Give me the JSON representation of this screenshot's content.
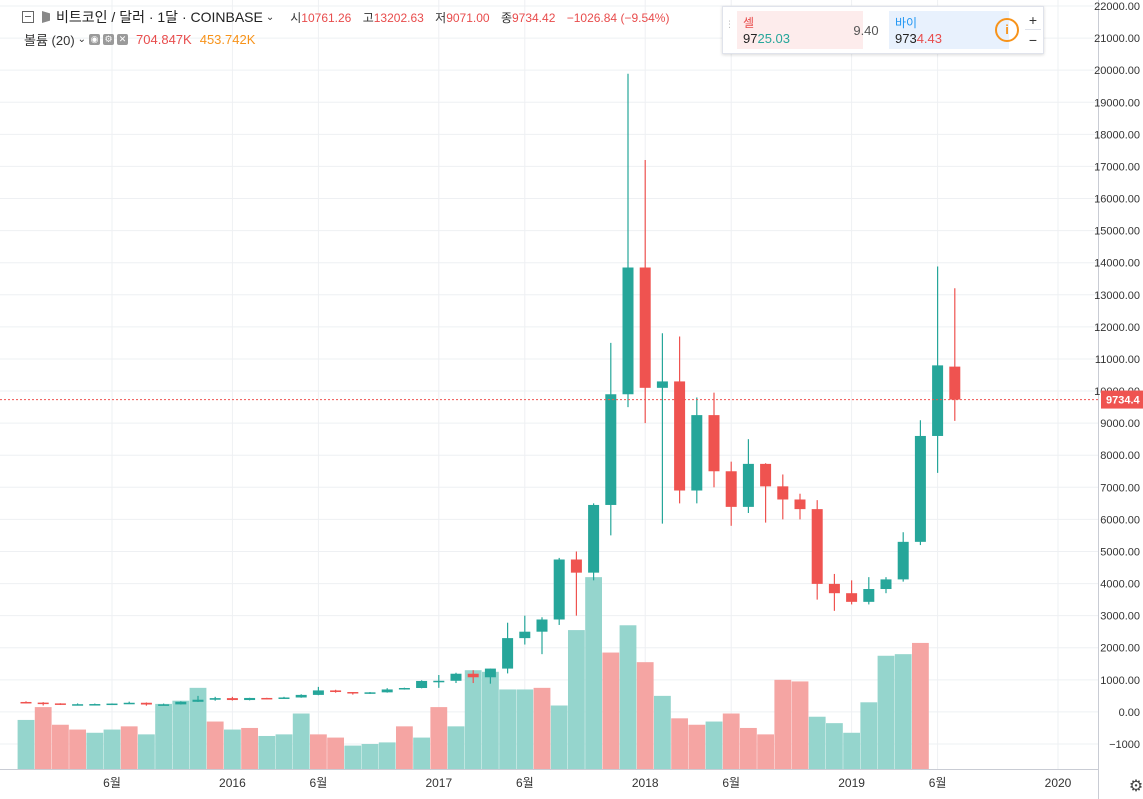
{
  "legend": {
    "symbol": "비트코인 / 달러 · 1달 · COINBASE",
    "ohlc": [
      {
        "label": "시",
        "value": "10761.26"
      },
      {
        "label": "고",
        "value": "13202.63"
      },
      {
        "label": "저",
        "value": "9071.00"
      },
      {
        "label": "종",
        "value": "9734.42"
      },
      {
        "label": "",
        "value": "−1026.84 (−9.54%)"
      }
    ],
    "volume_title": "볼륨 (20)",
    "volume_value": "704.847K",
    "volume_ma": "453.742K"
  },
  "trade_panel": {
    "sell_label": "셀",
    "sell_price_main": "97",
    "sell_price_hl": "25.03",
    "spread": "9.40",
    "buy_label": "바이",
    "buy_price_main": "973",
    "buy_price_hl": "4.43",
    "info_icon": "i",
    "zoom_in": "+",
    "zoom_out": "−"
  },
  "colors": {
    "up": "#26a69a",
    "down": "#ef5350",
    "up_volume": "#95d5cd",
    "down_volume": "#f5a5a3",
    "last_price": "#ef5350"
  },
  "chart_data": {
    "type": "candlestick",
    "y_axis": {
      "ticks": [
        -1000,
        0,
        1000,
        2000,
        3000,
        4000,
        5000,
        6000,
        7000,
        8000,
        9000,
        10000,
        11000,
        12000,
        13000,
        14000,
        15000,
        16000,
        17000,
        18000,
        19000,
        20000,
        21000,
        22000
      ],
      "tick_labels": [
        "−1000",
        "0.00",
        "1000.00",
        "2000.00",
        "3000.00",
        "4000.00",
        "5000.00",
        "6000.00",
        "7000.00",
        "8000.00",
        "9000.00",
        "10000.00",
        "11000.00",
        "12000.00",
        "13000.00",
        "14000.00",
        "15000.00",
        "16000.00",
        "17000.00",
        "18000.00",
        "19000.00",
        "20000.00",
        "21000.00",
        "22000.00"
      ],
      "range": [
        -1500,
        22200
      ]
    },
    "x_axis": {
      "labels": [
        {
          "text": "6월",
          "month": 5
        },
        {
          "text": "2016",
          "month": 12
        },
        {
          "text": "6월",
          "month": 17
        },
        {
          "text": "2017",
          "month": 24
        },
        {
          "text": "6월",
          "month": 29
        },
        {
          "text": "2018",
          "month": 36
        },
        {
          "text": "6월",
          "month": 41
        },
        {
          "text": "2019",
          "month": 48
        },
        {
          "text": "6월",
          "month": 53
        },
        {
          "text": "2020",
          "month": 60
        }
      ],
      "first_month": 0,
      "last_month": 66
    },
    "last_price": 9734.42,
    "last_price_label": "9734.4",
    "candles": [
      {
        "m": 0,
        "o": 310,
        "h": 330,
        "l": 265,
        "c": 290
      },
      {
        "m": 1,
        "o": 290,
        "h": 305,
        "l": 200,
        "c": 265
      },
      {
        "m": 2,
        "o": 265,
        "h": 270,
        "l": 215,
        "c": 230
      },
      {
        "m": 3,
        "o": 230,
        "h": 265,
        "l": 220,
        "c": 240
      },
      {
        "m": 4,
        "o": 240,
        "h": 260,
        "l": 230,
        "c": 245
      },
      {
        "m": 5,
        "o": 245,
        "h": 265,
        "l": 215,
        "c": 260
      },
      {
        "m": 6,
        "o": 260,
        "h": 320,
        "l": 255,
        "c": 285
      },
      {
        "m": 7,
        "o": 285,
        "h": 295,
        "l": 195,
        "c": 230
      },
      {
        "m": 8,
        "o": 230,
        "h": 260,
        "l": 210,
        "c": 235
      },
      {
        "m": 9,
        "o": 235,
        "h": 330,
        "l": 230,
        "c": 315
      },
      {
        "m": 10,
        "o": 315,
        "h": 500,
        "l": 310,
        "c": 380
      },
      {
        "m": 11,
        "o": 380,
        "h": 470,
        "l": 350,
        "c": 430
      },
      {
        "m": 12,
        "o": 430,
        "h": 470,
        "l": 355,
        "c": 370
      },
      {
        "m": 13,
        "o": 370,
        "h": 440,
        "l": 360,
        "c": 435
      },
      {
        "m": 14,
        "o": 435,
        "h": 440,
        "l": 395,
        "c": 415
      },
      {
        "m": 15,
        "o": 415,
        "h": 470,
        "l": 410,
        "c": 450
      },
      {
        "m": 16,
        "o": 450,
        "h": 550,
        "l": 440,
        "c": 530
      },
      {
        "m": 17,
        "o": 530,
        "h": 780,
        "l": 520,
        "c": 670
      },
      {
        "m": 18,
        "o": 670,
        "h": 690,
        "l": 600,
        "c": 620
      },
      {
        "m": 19,
        "o": 620,
        "h": 620,
        "l": 540,
        "c": 575
      },
      {
        "m": 20,
        "o": 575,
        "h": 620,
        "l": 560,
        "c": 610
      },
      {
        "m": 21,
        "o": 610,
        "h": 740,
        "l": 600,
        "c": 700
      },
      {
        "m": 22,
        "o": 700,
        "h": 755,
        "l": 695,
        "c": 745
      },
      {
        "m": 23,
        "o": 745,
        "h": 985,
        "l": 735,
        "c": 965
      },
      {
        "m": 24,
        "o": 965,
        "h": 1150,
        "l": 750,
        "c": 970
      },
      {
        "m": 25,
        "o": 970,
        "h": 1220,
        "l": 900,
        "c": 1190
      },
      {
        "m": 26,
        "o": 1190,
        "h": 1300,
        "l": 900,
        "c": 1080
      },
      {
        "m": 27,
        "o": 1080,
        "h": 1350,
        "l": 880,
        "c": 1350
      },
      {
        "m": 28,
        "o": 1350,
        "h": 2780,
        "l": 1200,
        "c": 2300
      },
      {
        "m": 29,
        "o": 2300,
        "h": 3000,
        "l": 2100,
        "c": 2500
      },
      {
        "m": 30,
        "o": 2500,
        "h": 2950,
        "l": 1800,
        "c": 2880
      },
      {
        "m": 31,
        "o": 2880,
        "h": 4800,
        "l": 2710,
        "c": 4750
      },
      {
        "m": 32,
        "o": 4750,
        "h": 5000,
        "l": 3000,
        "c": 4340
      },
      {
        "m": 33,
        "o": 4340,
        "h": 6500,
        "l": 4100,
        "c": 6450
      },
      {
        "m": 34,
        "o": 6450,
        "h": 11500,
        "l": 5500,
        "c": 9900
      },
      {
        "m": 35,
        "o": 9900,
        "h": 19890,
        "l": 9500,
        "c": 13850
      },
      {
        "m": 36,
        "o": 13850,
        "h": 17200,
        "l": 9000,
        "c": 10100
      },
      {
        "m": 37,
        "o": 10100,
        "h": 11800,
        "l": 5870,
        "c": 10300
      },
      {
        "m": 38,
        "o": 10300,
        "h": 11700,
        "l": 6500,
        "c": 6900
      },
      {
        "m": 39,
        "o": 6900,
        "h": 9800,
        "l": 6500,
        "c": 9250
      },
      {
        "m": 40,
        "o": 9250,
        "h": 9950,
        "l": 7000,
        "c": 7500
      },
      {
        "m": 41,
        "o": 7500,
        "h": 7800,
        "l": 5800,
        "c": 6390
      },
      {
        "m": 42,
        "o": 6390,
        "h": 8500,
        "l": 6200,
        "c": 7730
      },
      {
        "m": 43,
        "o": 7730,
        "h": 7750,
        "l": 5900,
        "c": 7030
      },
      {
        "m": 44,
        "o": 7030,
        "h": 7400,
        "l": 6000,
        "c": 6620
      },
      {
        "m": 45,
        "o": 6620,
        "h": 6800,
        "l": 6000,
        "c": 6320
      },
      {
        "m": 46,
        "o": 6320,
        "h": 6600,
        "l": 3500,
        "c": 3990
      },
      {
        "m": 47,
        "o": 3990,
        "h": 4300,
        "l": 3150,
        "c": 3700
      },
      {
        "m": 48,
        "o": 3700,
        "h": 4100,
        "l": 3350,
        "c": 3430
      },
      {
        "m": 49,
        "o": 3430,
        "h": 4200,
        "l": 3350,
        "c": 3830
      },
      {
        "m": 50,
        "o": 3830,
        "h": 4200,
        "l": 3700,
        "c": 4130
      },
      {
        "m": 51,
        "o": 4130,
        "h": 5600,
        "l": 4060,
        "c": 5300
      },
      {
        "m": 52,
        "o": 5300,
        "h": 9090,
        "l": 5200,
        "c": 8600
      },
      {
        "m": 53,
        "o": 8600,
        "h": 13880,
        "l": 7450,
        "c": 10800
      },
      {
        "m": 54,
        "o": 10761.26,
        "h": 13202.63,
        "l": 9071.0,
        "c": 9734.42
      }
    ],
    "volume": [
      {
        "m": 0,
        "v": -250,
        "d": "up"
      },
      {
        "m": 1,
        "v": 150,
        "d": "down"
      },
      {
        "m": 2,
        "v": -400,
        "d": "down"
      },
      {
        "m": 3,
        "v": -550,
        "d": "down"
      },
      {
        "m": 4,
        "v": -650,
        "d": "up"
      },
      {
        "m": 5,
        "v": -550,
        "d": "up"
      },
      {
        "m": 6,
        "v": -450,
        "d": "down"
      },
      {
        "m": 7,
        "v": -700,
        "d": "up"
      },
      {
        "m": 8,
        "v": 250,
        "d": "up"
      },
      {
        "m": 9,
        "v": 350,
        "d": "up"
      },
      {
        "m": 10,
        "v": 750,
        "d": "up"
      },
      {
        "m": 11,
        "v": -300,
        "d": "down"
      },
      {
        "m": 12,
        "v": -550,
        "d": "up"
      },
      {
        "m": 13,
        "v": -500,
        "d": "down"
      },
      {
        "m": 14,
        "v": -750,
        "d": "up"
      },
      {
        "m": 15,
        "v": -700,
        "d": "up"
      },
      {
        "m": 16,
        "v": -50,
        "d": "up"
      },
      {
        "m": 17,
        "v": -700,
        "d": "down"
      },
      {
        "m": 18,
        "v": -800,
        "d": "down"
      },
      {
        "m": 19,
        "v": -1050,
        "d": "up"
      },
      {
        "m": 20,
        "v": -1000,
        "d": "up"
      },
      {
        "m": 21,
        "v": -950,
        "d": "up"
      },
      {
        "m": 22,
        "v": -450,
        "d": "down"
      },
      {
        "m": 23,
        "v": -800,
        "d": "up"
      },
      {
        "m": 24,
        "v": 150,
        "d": "down"
      },
      {
        "m": 25,
        "v": -450,
        "d": "up"
      },
      {
        "m": 26,
        "v": 1300,
        "d": "up"
      },
      {
        "m": 27,
        "v": 1250,
        "d": "up"
      },
      {
        "m": 28,
        "v": 700,
        "d": "up"
      },
      {
        "m": 29,
        "v": 700,
        "d": "up"
      },
      {
        "m": 30,
        "v": 750,
        "d": "down"
      },
      {
        "m": 31,
        "v": 200,
        "d": "up"
      },
      {
        "m": 32,
        "v": 2550,
        "d": "up"
      },
      {
        "m": 33,
        "v": 4200,
        "d": "up"
      },
      {
        "m": 34,
        "v": 1850,
        "d": "down"
      },
      {
        "m": 35,
        "v": 2700,
        "d": "up"
      },
      {
        "m": 36,
        "v": 1550,
        "d": "down"
      },
      {
        "m": 37,
        "v": 500,
        "d": "up"
      },
      {
        "m": 38,
        "v": -200,
        "d": "down"
      },
      {
        "m": 39,
        "v": -400,
        "d": "down"
      },
      {
        "m": 40,
        "v": -300,
        "d": "up"
      },
      {
        "m": 41,
        "v": -50,
        "d": "down"
      },
      {
        "m": 42,
        "v": -500,
        "d": "down"
      },
      {
        "m": 43,
        "v": -700,
        "d": "down"
      },
      {
        "m": 44,
        "v": 1000,
        "d": "down"
      },
      {
        "m": 45,
        "v": 950,
        "d": "down"
      },
      {
        "m": 46,
        "v": -150,
        "d": "up"
      },
      {
        "m": 47,
        "v": -350,
        "d": "up"
      },
      {
        "m": 48,
        "v": -650,
        "d": "up"
      },
      {
        "m": 49,
        "v": 300,
        "d": "up"
      },
      {
        "m": 50,
        "v": 1750,
        "d": "up"
      },
      {
        "m": 51,
        "v": 1800,
        "d": "up"
      },
      {
        "m": 52,
        "v": 2150,
        "d": "down"
      }
    ]
  }
}
